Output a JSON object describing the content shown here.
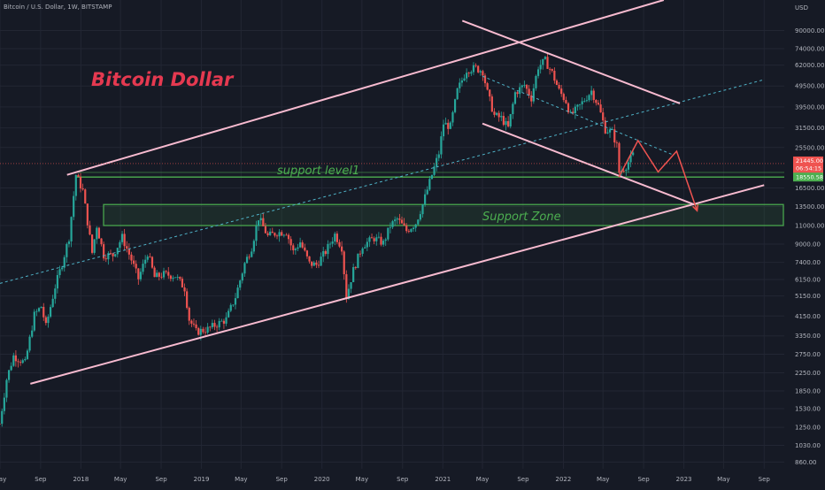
{
  "header": {
    "symbol_line": "Bitcoin / U.S. Dollar, 1W, BITSTAMP"
  },
  "colors": {
    "background": "#161a25",
    "up": "#26a69a",
    "down": "#ef5350",
    "channel": "#f8bbd0",
    "support": "#4caf50",
    "title": "#e53950",
    "projection": "#ef5350",
    "midline": "#4fb3c8"
  },
  "chart_data": {
    "type": "line",
    "title": "Bitcoin Dollar",
    "y_axis": {
      "unit": "USD",
      "scale": "log",
      "ticks": [
        "90000.00",
        "74000.00",
        "62000.00",
        "49500.00",
        "39500.00",
        "31500.00",
        "25500.00",
        "16500.00",
        "13500.00",
        "11000.00",
        "9000.00",
        "7400.00",
        "6150.00",
        "5150.00",
        "4150.00",
        "3350.00",
        "2750.00",
        "2250.00",
        "1850.00",
        "1530.00",
        "1250.00",
        "1030.00",
        "860.00"
      ],
      "tick_values": [
        90000,
        74000,
        62000,
        49500,
        39500,
        31500,
        25500,
        16500,
        13500,
        11000,
        9000,
        7400,
        6150,
        5150,
        4150,
        3350,
        2750,
        2250,
        1850,
        1530,
        1250,
        1030,
        860
      ],
      "range": [
        800,
        125000
      ]
    },
    "x_axis": {
      "tick_labels": [
        "May",
        "Sep",
        "2018",
        "May",
        "Sep",
        "2019",
        "May",
        "Sep",
        "2020",
        "May",
        "Sep",
        "2021",
        "May",
        "Sep",
        "2022",
        "May",
        "Sep",
        "2023",
        "May",
        "Sep"
      ],
      "tick_dates": [
        "2017-05",
        "2017-09",
        "2018-01",
        "2018-05",
        "2018-09",
        "2019-01",
        "2019-05",
        "2019-09",
        "2020-01",
        "2020-05",
        "2020-09",
        "2021-01",
        "2021-05",
        "2021-09",
        "2022-01",
        "2022-05",
        "2022-09",
        "2023-01",
        "2023-05",
        "2023-09"
      ]
    },
    "price_tags": [
      {
        "role": "last-price",
        "value": "21445.00",
        "countdown": "06:54:15",
        "price": 21445
      },
      {
        "role": "support-level",
        "value": "18550.58",
        "price": 18550.58
      }
    ],
    "series": [
      {
        "label": "BTCUSD close (weekly, approx.)",
        "dates": [
          "2017-04-30",
          "2017-05-21",
          "2017-06-11",
          "2017-07-16",
          "2017-08-13",
          "2017-09-03",
          "2017-09-17",
          "2017-10-15",
          "2017-11-05",
          "2017-11-26",
          "2017-12-17",
          "2018-01-07",
          "2018-02-04",
          "2018-02-18",
          "2018-03-11",
          "2018-04-08",
          "2018-05-06",
          "2018-06-03",
          "2018-06-24",
          "2018-07-22",
          "2018-08-12",
          "2018-09-09",
          "2018-10-14",
          "2018-11-11",
          "2018-11-25",
          "2018-12-16",
          "2019-01-20",
          "2019-02-17",
          "2019-03-17",
          "2019-04-14",
          "2019-05-12",
          "2019-06-02",
          "2019-06-23",
          "2019-07-21",
          "2019-08-18",
          "2019-09-15",
          "2019-10-06",
          "2019-10-27",
          "2019-11-24",
          "2019-12-15",
          "2020-01-12",
          "2020-02-09",
          "2020-03-01",
          "2020-03-15",
          "2020-04-05",
          "2020-05-03",
          "2020-06-07",
          "2020-07-05",
          "2020-07-26",
          "2020-08-16",
          "2020-09-13",
          "2020-10-11",
          "2020-11-01",
          "2020-11-29",
          "2020-12-20",
          "2021-01-03",
          "2021-01-24",
          "2021-02-14",
          "2021-03-14",
          "2021-04-11",
          "2021-05-02",
          "2021-05-16",
          "2021-06-06",
          "2021-06-27",
          "2021-07-18",
          "2021-08-08",
          "2021-09-05",
          "2021-09-26",
          "2021-10-17",
          "2021-11-07",
          "2021-11-28",
          "2021-12-19",
          "2022-01-09",
          "2022-01-23",
          "2022-02-20",
          "2022-03-27",
          "2022-04-17",
          "2022-05-08",
          "2022-05-29",
          "2022-06-12",
          "2022-06-19",
          "2022-07-10",
          "2022-07-31"
        ],
        "values": [
          1300,
          2100,
          2700,
          2500,
          4200,
          4600,
          3700,
          5700,
          7300,
          9700,
          19000,
          16000,
          8200,
          11000,
          8000,
          8000,
          9700,
          7600,
          6200,
          8200,
          6300,
          6500,
          6400,
          5600,
          4000,
          3500,
          3600,
          3800,
          4000,
          5100,
          7300,
          8700,
          12000,
          9800,
          10200,
          10300,
          8300,
          9200,
          7300,
          7200,
          8300,
          10000,
          8700,
          5100,
          6800,
          8900,
          9600,
          9100,
          11000,
          11800,
          10400,
          11300,
          13800,
          19000,
          24000,
          33000,
          32000,
          47000,
          59000,
          60000,
          58000,
          46000,
          36000,
          35000,
          31500,
          46000,
          50000,
          43500,
          61000,
          65000,
          57000,
          47000,
          42000,
          36000,
          40000,
          47000,
          40000,
          31000,
          30000,
          26000,
          19500,
          21000,
          23500
        ]
      }
    ],
    "annotations": {
      "title_text": "Bitcoin Dollar",
      "support_level_label": "support level1",
      "support_zone_label": "Support Zone",
      "support_level_price": 18550,
      "support_zone_range": [
        11000,
        13800
      ],
      "ascending_channel_upper": [
        [
          "2017-11-20",
          19000
        ],
        [
          "2022-11-01",
          125000
        ]
      ],
      "ascending_channel_lower": [
        [
          "2017-08-01",
          2000
        ],
        [
          "2023-09-01",
          17000
        ]
      ],
      "ascending_channel_mid": [
        [
          "2017-05-01",
          5900
        ],
        [
          "2023-09-01",
          53000
        ]
      ],
      "descending_channel_upper": [
        [
          "2021-03-01",
          100000
        ],
        [
          "2022-12-20",
          41000
        ]
      ],
      "descending_channel_lower": [
        [
          "2021-05-01",
          33000
        ],
        [
          "2023-02-01",
          13800
        ]
      ],
      "descending_channel_mid": [
        [
          "2021-05-01",
          55000
        ],
        [
          "2022-12-01",
          23500
        ]
      ],
      "projection_path": [
        [
          "2022-06-18",
          18550
        ],
        [
          "2022-08-15",
          27500
        ],
        [
          "2022-10-15",
          19600
        ],
        [
          "2022-12-10",
          24500
        ],
        [
          "2023-02-10",
          12900
        ]
      ]
    }
  }
}
